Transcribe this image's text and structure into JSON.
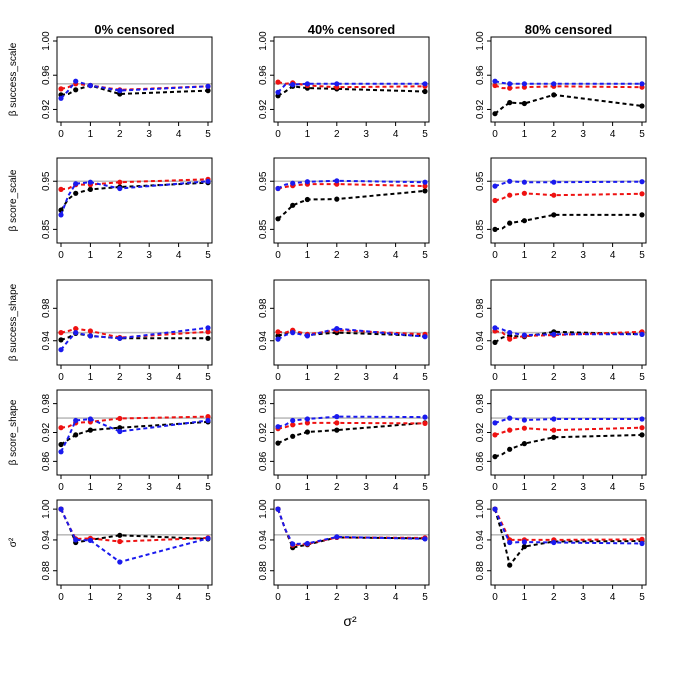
{
  "colors": {
    "black": "#000000",
    "red": "#ee1111",
    "blue": "#1a1aee",
    "reference": "#bdbdbd"
  },
  "xlabel": "σ²",
  "chart_data": {
    "type": "line",
    "layout": "3 columns x 5 rows grid of line plots",
    "columns": [
      "0% censored",
      "40% censored",
      "80% censored"
    ],
    "x": [
      0,
      0.25,
      0.5,
      1,
      2,
      5
    ],
    "xticks": [
      0,
      1,
      2,
      3,
      4,
      5
    ],
    "series_order": [
      "black",
      "red",
      "blue"
    ],
    "rows": [
      {
        "ylabel": "β success_scale",
        "ylim": [
          0.91,
          1.0
        ],
        "yticks": [
          "0.92",
          "0.96",
          "1.00"
        ],
        "reference": 0.95,
        "panels": [
          {
            "black": [
              0.937,
              0.938,
              0.943,
              0.948,
              0.938,
              0.942
            ],
            "red": [
              0.944,
              0.946,
              0.95,
              0.948,
              0.943,
              0.947
            ],
            "blue": [
              0.933,
              0.942,
              0.953,
              0.948,
              0.942,
              0.947
            ]
          },
          {
            "black": [
              0.936,
              0.941,
              0.947,
              0.945,
              0.944,
              0.941
            ],
            "red": [
              0.952,
              0.95,
              0.951,
              0.948,
              0.946,
              0.947
            ],
            "blue": [
              0.94,
              0.949,
              0.949,
              0.95,
              0.95,
              0.95
            ]
          },
          {
            "black": [
              0.915,
              0.922,
              0.928,
              0.927,
              0.937,
              0.924
            ],
            "red": [
              0.948,
              0.945,
              0.945,
              0.946,
              0.947,
              0.946
            ],
            "blue": [
              0.953,
              0.951,
              0.95,
              0.95,
              0.95,
              0.95
            ]
          }
        ]
      },
      {
        "ylabel": "β score_scale",
        "ylim": [
          0.83,
          0.99
        ],
        "yticks": [
          "0.85",
          "0.95"
        ],
        "reference": 0.95,
        "panels": [
          {
            "black": [
              0.89,
              0.913,
              0.925,
              0.933,
              0.938,
              0.947
            ],
            "red": [
              0.933,
              0.935,
              0.943,
              0.943,
              0.948,
              0.954
            ],
            "blue": [
              0.88,
              0.92,
              0.945,
              0.948,
              0.935,
              0.95
            ]
          },
          {
            "black": [
              0.872,
              0.885,
              0.9,
              0.912,
              0.913,
              0.93
            ],
            "red": [
              0.935,
              0.938,
              0.941,
              0.944,
              0.944,
              0.94
            ],
            "blue": [
              0.935,
              0.943,
              0.946,
              0.949,
              0.951,
              0.948
            ]
          },
          {
            "black": [
              0.85,
              0.852,
              0.863,
              0.868,
              0.88,
              0.88
            ],
            "red": [
              0.91,
              0.914,
              0.921,
              0.925,
              0.921,
              0.924
            ],
            "blue": [
              0.94,
              0.945,
              0.95,
              0.948,
              0.948,
              0.949
            ]
          }
        ]
      },
      {
        "ylabel": "β success_shape",
        "ylim": [
          0.915,
          1.01
        ],
        "yticks": [
          "0.94",
          "0.98"
        ],
        "reference": 0.95,
        "panels": [
          {
            "black": [
              0.941,
              0.944,
              0.949,
              0.946,
              0.943,
              0.943
            ],
            "red": [
              0.95,
              0.952,
              0.955,
              0.952,
              0.944,
              0.951
            ],
            "blue": [
              0.929,
              0.94,
              0.95,
              0.946,
              0.943,
              0.956
            ]
          },
          {
            "black": [
              0.946,
              0.949,
              0.952,
              0.947,
              0.95,
              0.946
            ],
            "red": [
              0.951,
              0.95,
              0.953,
              0.948,
              0.953,
              0.948
            ],
            "blue": [
              0.942,
              0.947,
              0.95,
              0.946,
              0.955,
              0.945
            ]
          },
          {
            "black": [
              0.938,
              0.944,
              0.946,
              0.945,
              0.951,
              0.948
            ],
            "red": [
              0.952,
              0.95,
              0.942,
              0.946,
              0.947,
              0.951
            ],
            "blue": [
              0.956,
              0.954,
              0.95,
              0.947,
              0.948,
              0.948
            ]
          }
        ]
      },
      {
        "ylabel": "β score_shape",
        "ylim": [
          0.84,
          1.0
        ],
        "yticks": [
          "0.86",
          "0.92",
          "0.98"
        ],
        "reference": 0.95,
        "panels": [
          {
            "black": [
              0.895,
              0.905,
              0.915,
              0.925,
              0.93,
              0.942
            ],
            "red": [
              0.93,
              0.932,
              0.94,
              0.942,
              0.949,
              0.953
            ],
            "blue": [
              0.88,
              0.91,
              0.945,
              0.948,
              0.922,
              0.945
            ]
          },
          {
            "black": [
              0.898,
              0.905,
              0.912,
              0.921,
              0.925,
              0.94
            ],
            "red": [
              0.928,
              0.931,
              0.936,
              0.94,
              0.94,
              0.939
            ],
            "blue": [
              0.932,
              0.936,
              0.945,
              0.948,
              0.953,
              0.952
            ]
          },
          {
            "black": [
              0.87,
              0.875,
              0.885,
              0.897,
              0.91,
              0.915
            ],
            "red": [
              0.915,
              0.92,
              0.925,
              0.929,
              0.925,
              0.93
            ],
            "blue": [
              0.94,
              0.945,
              0.95,
              0.946,
              0.948,
              0.948
            ]
          }
        ]
      },
      {
        "ylabel": "σ²",
        "ylim": [
          0.86,
          1.01
        ],
        "yticks": [
          "0.88",
          "0.94",
          "1.00"
        ],
        "reference": 0.95,
        "panels": [
          {
            "black": [
              1.0,
              0.97,
              0.935,
              0.94,
              0.949,
              0.942
            ],
            "red": [
              1.0,
              0.97,
              0.942,
              0.943,
              0.937,
              0.944
            ],
            "blue": [
              1.0,
              0.97,
              0.94,
              0.939,
              0.897,
              0.943
            ]
          },
          {
            "black": [
              1.0,
              0.96,
              0.925,
              0.931,
              0.945,
              0.943
            ],
            "red": [
              1.0,
              0.96,
              0.93,
              0.932,
              0.945,
              0.944
            ],
            "blue": [
              1.0,
              0.96,
              0.932,
              0.933,
              0.946,
              0.942
            ]
          },
          {
            "black": [
              1.0,
              0.95,
              0.891,
              0.927,
              0.937,
              0.938
            ],
            "red": [
              1.0,
              0.97,
              0.94,
              0.94,
              0.94,
              0.941
            ],
            "blue": [
              1.0,
              0.965,
              0.935,
              0.936,
              0.935,
              0.933
            ]
          }
        ]
      }
    ]
  }
}
